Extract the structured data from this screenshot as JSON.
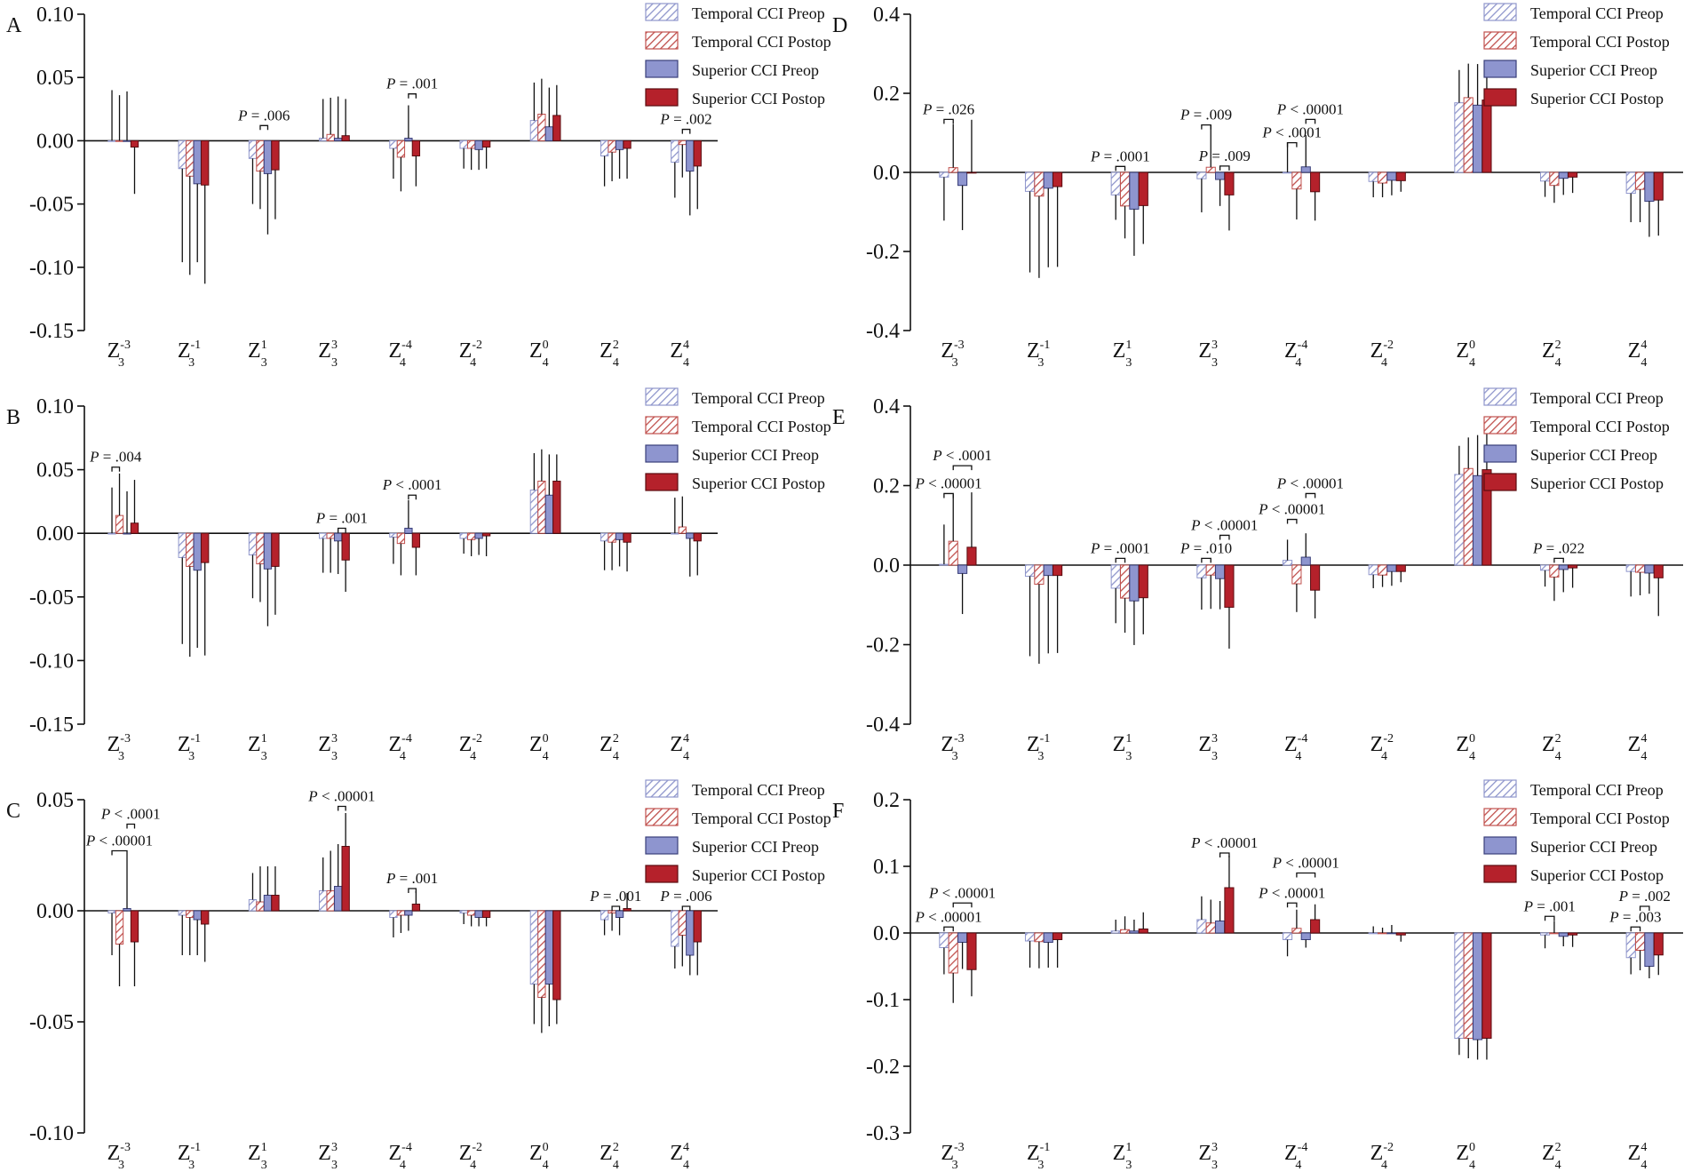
{
  "figure": {
    "legend": [
      {
        "label": "Temporal CCI Preop",
        "style": "hatch-blue"
      },
      {
        "label": "Temporal CCI Postop",
        "style": "hatch-red"
      },
      {
        "label": "Superior CCI Preop",
        "style": "solid-blue"
      },
      {
        "label": "Superior CCI Postop",
        "style": "solid-red"
      }
    ],
    "colors": {
      "preop_hatch": "#8f96cc",
      "postop_hatch": "#c0504d",
      "superior_preop_fill": "#8e95cf",
      "superior_postop_fill": "#b5212b",
      "axis": "#111111"
    },
    "x_categories": [
      {
        "base": "Z",
        "sub": "3",
        "sup": "-3"
      },
      {
        "base": "Z",
        "sub": "3",
        "sup": "-1"
      },
      {
        "base": "Z",
        "sub": "3",
        "sup": "1"
      },
      {
        "base": "Z",
        "sub": "3",
        "sup": "3"
      },
      {
        "base": "Z",
        "sub": "4",
        "sup": "-4"
      },
      {
        "base": "Z",
        "sub": "4",
        "sup": "-2"
      },
      {
        "base": "Z",
        "sub": "4",
        "sup": "0"
      },
      {
        "base": "Z",
        "sub": "4",
        "sup": "2"
      },
      {
        "base": "Z",
        "sub": "4",
        "sup": "4"
      }
    ]
  },
  "chart_data": [
    {
      "panel": "A",
      "type": "bar",
      "ylim": [
        -0.15,
        0.1
      ],
      "yticks": [
        "0.10",
        "0.05",
        "0.00",
        "-0.05",
        "-0.10",
        "-0.15"
      ],
      "ytick_values": [
        0.1,
        0.05,
        0,
        -0.05,
        -0.1,
        -0.15
      ],
      "series": [
        {
          "name": "Temporal CCI Preop",
          "values": [
            0.0,
            -0.022,
            -0.014,
            0.002,
            -0.006,
            -0.006,
            0.016,
            -0.012,
            -0.017
          ],
          "errors": [
            0.04,
            0.074,
            0.036,
            0.031,
            0.024,
            0.016,
            0.03,
            0.024,
            0.028
          ]
        },
        {
          "name": "Temporal CCI Postop",
          "values": [
            0.0,
            -0.028,
            -0.024,
            0.005,
            -0.013,
            -0.006,
            0.021,
            -0.009,
            -0.003
          ],
          "errors": [
            0.036,
            0.078,
            0.03,
            0.029,
            0.027,
            0.017,
            0.028,
            0.023,
            0.026
          ]
        },
        {
          "name": "Superior CCI Preop",
          "values": [
            0.0,
            -0.034,
            -0.026,
            0.002,
            0.002,
            -0.007,
            0.011,
            -0.007,
            -0.024
          ],
          "errors": [
            0.039,
            0.062,
            0.048,
            0.033,
            0.026,
            0.016,
            0.031,
            0.023,
            0.035
          ]
        },
        {
          "name": "Superior CCI Postop",
          "values": [
            -0.005,
            -0.035,
            -0.023,
            0.004,
            -0.012,
            -0.005,
            0.02,
            -0.006,
            -0.02
          ],
          "errors": [
            0.037,
            0.078,
            0.039,
            0.029,
            0.024,
            0.017,
            0.024,
            0.024,
            0.034
          ]
        }
      ],
      "annotations": [
        {
          "cat": 2,
          "a": 1,
          "b": 2,
          "text": "P = .006",
          "y": 0.012
        },
        {
          "cat": 4,
          "a": 2,
          "b": 3,
          "text": "P = .001",
          "y": 0.037
        },
        {
          "cat": 8,
          "a": 1,
          "b": 2,
          "text": "P = .002",
          "y": 0.009
        }
      ]
    },
    {
      "panel": "B",
      "type": "bar",
      "ylim": [
        -0.15,
        0.1
      ],
      "yticks": [
        "0.10",
        "0.05",
        "0.00",
        "-0.05",
        "-0.10",
        "-0.15"
      ],
      "ytick_values": [
        0.1,
        0.05,
        0,
        -0.05,
        -0.1,
        -0.15
      ],
      "series": [
        {
          "name": "Temporal CCI Preop",
          "values": [
            0.0,
            -0.019,
            -0.017,
            -0.004,
            -0.003,
            -0.004,
            0.034,
            -0.006,
            0.0
          ],
          "errors": [
            0.036,
            0.068,
            0.034,
            0.027,
            0.021,
            0.012,
            0.029,
            0.023,
            0.028
          ]
        },
        {
          "name": "Temporal CCI Postop",
          "values": [
            0.014,
            -0.026,
            -0.024,
            -0.004,
            -0.008,
            -0.005,
            0.041,
            -0.007,
            0.005
          ],
          "errors": [
            0.033,
            0.071,
            0.03,
            0.027,
            0.025,
            0.013,
            0.025,
            0.022,
            0.024
          ]
        },
        {
          "name": "Superior CCI Preop",
          "values": [
            0.0,
            -0.029,
            -0.028,
            -0.006,
            0.004,
            -0.004,
            0.03,
            -0.005,
            -0.004
          ],
          "errors": [
            0.033,
            0.061,
            0.045,
            0.026,
            0.022,
            0.013,
            0.032,
            0.021,
            0.03
          ]
        },
        {
          "name": "Superior CCI Postop",
          "values": [
            0.008,
            -0.023,
            -0.026,
            -0.021,
            -0.011,
            -0.002,
            0.041,
            -0.007,
            -0.006
          ],
          "errors": [
            0.034,
            0.073,
            0.038,
            0.025,
            0.022,
            0.016,
            0.021,
            0.023,
            0.027
          ]
        }
      ],
      "annotations": [
        {
          "cat": 0,
          "a": 0,
          "b": 1,
          "text": "P = .004",
          "y": 0.052
        },
        {
          "cat": 3,
          "a": 2,
          "b": 3,
          "text": "P = .001",
          "y": 0.004
        },
        {
          "cat": 4,
          "a": 2,
          "b": 3,
          "text": "P < .0001",
          "y": 0.03
        }
      ]
    },
    {
      "panel": "C",
      "type": "bar",
      "ylim": [
        -0.1,
        0.05
      ],
      "yticks": [
        "0.05",
        "0.00",
        "-0.05",
        "-0.10"
      ],
      "ytick_values": [
        0.05,
        0,
        -0.05,
        -0.1
      ],
      "series": [
        {
          "name": "Temporal CCI Preop",
          "values": [
            -0.001,
            -0.002,
            0.005,
            0.009,
            -0.003,
            -0.001,
            -0.033,
            -0.004,
            -0.016
          ],
          "errors": [
            0.019,
            0.018,
            0.012,
            0.015,
            0.009,
            0.005,
            0.018,
            0.007,
            0.01
          ]
        },
        {
          "name": "Temporal CCI Postop",
          "values": [
            -0.015,
            -0.003,
            0.004,
            0.009,
            -0.002,
            -0.002,
            -0.039,
            -0.001,
            -0.011
          ],
          "errors": [
            0.019,
            0.017,
            0.016,
            0.018,
            0.008,
            0.005,
            0.016,
            0.008,
            0.014
          ]
        },
        {
          "name": "Superior CCI Preop",
          "values": [
            0.001,
            -0.004,
            0.007,
            0.011,
            -0.002,
            -0.003,
            -0.033,
            -0.003,
            -0.02
          ],
          "errors": [
            0.024,
            0.016,
            0.013,
            0.019,
            0.007,
            0.004,
            0.019,
            0.008,
            0.009
          ]
        },
        {
          "name": "Superior CCI Postop",
          "values": [
            -0.014,
            -0.006,
            0.007,
            0.029,
            0.003,
            -0.003,
            -0.04,
            0.001,
            -0.014
          ],
          "errors": [
            0.02,
            0.017,
            0.013,
            0.015,
            0.006,
            0.004,
            0.011,
            0.007,
            0.015
          ]
        }
      ],
      "annotations": [
        {
          "cat": 0,
          "a": 0,
          "b": 2,
          "text": "P < .00001",
          "y": 0.027
        },
        {
          "cat": 0,
          "a": 2,
          "b": 3,
          "text": "P < .0001",
          "y": 0.039
        },
        {
          "cat": 3,
          "a": 2,
          "b": 3,
          "text": "P < .00001",
          "y": 0.047
        },
        {
          "cat": 4,
          "a": 2,
          "b": 3,
          "text": "P = .001",
          "y": 0.01
        },
        {
          "cat": 7,
          "a": 1,
          "b": 2,
          "text": "P = .001",
          "y": 0.002
        },
        {
          "cat": 8,
          "a": 1,
          "b": 2,
          "text": "P = .006",
          "y": 0.002
        }
      ]
    },
    {
      "panel": "D",
      "type": "bar",
      "ylim": [
        -0.4,
        0.4
      ],
      "yticks": [
        "0.4",
        "0.2",
        "0.0",
        "-0.2",
        "-0.4"
      ],
      "ytick_values": [
        0.4,
        0.2,
        0,
        -0.2,
        -0.4
      ],
      "series": [
        {
          "name": "Temporal CCI Preop",
          "values": [
            -0.012,
            -0.048,
            -0.057,
            -0.016,
            0.0,
            -0.023,
            0.176,
            -0.022,
            -0.053
          ],
          "errors": [
            0.11,
            0.205,
            0.063,
            0.085,
            0.076,
            0.04,
            0.083,
            0.04,
            0.073
          ]
        },
        {
          "name": "Temporal CCI Postop",
          "values": [
            0.012,
            -0.06,
            -0.085,
            0.013,
            -0.042,
            -0.027,
            0.189,
            -0.033,
            -0.043
          ],
          "errors": [
            0.11,
            0.207,
            0.082,
            0.106,
            0.077,
            0.036,
            0.086,
            0.044,
            0.083
          ]
        },
        {
          "name": "Superior CCI Preop",
          "values": [
            -0.033,
            -0.04,
            -0.093,
            -0.018,
            0.014,
            -0.02,
            0.17,
            -0.015,
            -0.073
          ],
          "errors": [
            0.113,
            0.2,
            0.118,
            0.067,
            0.08,
            0.038,
            0.104,
            0.042,
            0.09
          ]
        },
        {
          "name": "Superior CCI Postop",
          "values": [
            0.0,
            -0.036,
            -0.084,
            -0.057,
            -0.049,
            -0.021,
            0.183,
            -0.012,
            -0.07
          ],
          "errors": [
            0.133,
            0.203,
            0.097,
            0.09,
            0.073,
            0.028,
            0.092,
            0.04,
            0.09
          ]
        }
      ],
      "annotations": [
        {
          "cat": 0,
          "a": 0,
          "b": 1,
          "text": "P = .026",
          "y": 0.134
        },
        {
          "cat": 2,
          "a": 0,
          "b": 1,
          "text": "P = .0001",
          "y": 0.015
        },
        {
          "cat": 3,
          "a": 0,
          "b": 1,
          "text": "P = .009",
          "y": 0.12
        },
        {
          "cat": 3,
          "a": 2,
          "b": 3,
          "text": "P = .009",
          "y": 0.016
        },
        {
          "cat": 4,
          "a": 0,
          "b": 1,
          "text": "P < .0001",
          "y": 0.075
        },
        {
          "cat": 4,
          "a": 2,
          "b": 3,
          "text": "P < .00001",
          "y": 0.134
        }
      ]
    },
    {
      "panel": "E",
      "type": "bar",
      "ylim": [
        -0.4,
        0.4
      ],
      "yticks": [
        "0.4",
        "0.2",
        "0.0",
        "-0.2",
        "-0.4"
      ],
      "ytick_values": [
        0.4,
        0.2,
        0,
        -0.2,
        -0.4
      ],
      "series": [
        {
          "name": "Temporal CCI Preop",
          "values": [
            0.002,
            -0.028,
            -0.058,
            -0.032,
            0.012,
            -0.024,
            0.228,
            -0.013,
            -0.016
          ],
          "errors": [
            0.1,
            0.201,
            0.088,
            0.08,
            0.052,
            0.034,
            0.072,
            0.041,
            0.063
          ]
        },
        {
          "name": "Temporal CCI Postop",
          "values": [
            0.06,
            -0.048,
            -0.083,
            -0.025,
            -0.047,
            -0.025,
            0.243,
            -0.03,
            -0.018
          ],
          "errors": [
            0.118,
            0.2,
            0.087,
            0.085,
            0.071,
            0.03,
            0.078,
            0.06,
            0.058
          ]
        },
        {
          "name": "Superior CCI Preop",
          "values": [
            -0.021,
            -0.026,
            -0.09,
            -0.034,
            0.02,
            -0.016,
            0.225,
            -0.011,
            -0.02
          ],
          "errors": [
            0.102,
            0.196,
            0.111,
            0.077,
            0.06,
            0.036,
            0.102,
            0.057,
            0.052
          ]
        },
        {
          "name": "Superior CCI Postop",
          "values": [
            0.045,
            -0.026,
            -0.082,
            -0.106,
            -0.063,
            -0.016,
            0.24,
            -0.007,
            -0.032
          ],
          "errors": [
            0.138,
            0.195,
            0.092,
            0.104,
            0.071,
            0.027,
            0.09,
            0.05,
            0.096
          ]
        }
      ],
      "annotations": [
        {
          "cat": 0,
          "a": 0,
          "b": 1,
          "text": "P < .00001",
          "y": 0.18
        },
        {
          "cat": 0,
          "a": 1,
          "b": 3,
          "text": "P < .0001",
          "y": 0.25
        },
        {
          "cat": 2,
          "a": 0,
          "b": 1,
          "text": "P = .0001",
          "y": 0.017
        },
        {
          "cat": 3,
          "a": 0,
          "b": 1,
          "text": "P = .010",
          "y": 0.017
        },
        {
          "cat": 3,
          "a": 2,
          "b": 3,
          "text": "P < .00001",
          "y": 0.075
        },
        {
          "cat": 4,
          "a": 0,
          "b": 1,
          "text": "P < .00001",
          "y": 0.115
        },
        {
          "cat": 4,
          "a": 2,
          "b": 3,
          "text": "P < .00001",
          "y": 0.18
        },
        {
          "cat": 7,
          "a": 1,
          "b": 2,
          "text": "P = .022",
          "y": 0.017
        }
      ]
    },
    {
      "panel": "F",
      "type": "bar",
      "ylim": [
        -0.3,
        0.2
      ],
      "yticks": [
        "0.2",
        "0.1",
        "0.0",
        "-0.1",
        "-0.2",
        "-0.3"
      ],
      "ytick_values": [
        0.2,
        0.1,
        0,
        -0.1,
        -0.2,
        -0.3
      ],
      "series": [
        {
          "name": "Temporal CCI Preop",
          "values": [
            -0.022,
            -0.012,
            0.003,
            0.02,
            -0.01,
            0.0,
            -0.158,
            -0.003,
            -0.037
          ],
          "errors": [
            0.04,
            0.04,
            0.017,
            0.035,
            0.025,
            0.01,
            0.025,
            0.02,
            0.025
          ]
        },
        {
          "name": "Temporal CCI Postop",
          "values": [
            -0.06,
            -0.013,
            0.005,
            0.015,
            0.007,
            0.0,
            -0.158,
            0.0,
            -0.026
          ],
          "errors": [
            0.045,
            0.04,
            0.02,
            0.035,
            0.028,
            0.008,
            0.03,
            0.018,
            0.03
          ]
        },
        {
          "name": "Superior CCI Preop",
          "values": [
            -0.014,
            -0.014,
            0.003,
            0.018,
            -0.01,
            0.0,
            -0.16,
            -0.005,
            -0.05
          ],
          "errors": [
            0.04,
            0.038,
            0.017,
            0.03,
            0.012,
            0.012,
            0.03,
            0.015,
            0.018
          ]
        },
        {
          "name": "Superior CCI Postop",
          "values": [
            -0.055,
            -0.01,
            0.006,
            0.068,
            0.02,
            -0.003,
            -0.158,
            -0.003,
            -0.033
          ],
          "errors": [
            0.04,
            0.042,
            0.025,
            0.048,
            0.023,
            0.01,
            0.032,
            0.018,
            0.03
          ]
        }
      ],
      "annotations": [
        {
          "cat": 0,
          "a": 0,
          "b": 1,
          "text": "P < .00001",
          "y": 0.009
        },
        {
          "cat": 0,
          "a": 1,
          "b": 3,
          "text": "P < .00001",
          "y": 0.045
        },
        {
          "cat": 3,
          "a": 2,
          "b": 3,
          "text": "P < .00001",
          "y": 0.12
        },
        {
          "cat": 4,
          "a": 0,
          "b": 1,
          "text": "P < .00001",
          "y": 0.045
        },
        {
          "cat": 4,
          "a": 1,
          "b": 3,
          "text": "P < .00001",
          "y": 0.09
        },
        {
          "cat": 7,
          "a": 0,
          "b": 1,
          "text": "P = .001",
          "y": 0.025
        },
        {
          "cat": 8,
          "a": 0,
          "b": 1,
          "text": "P = .003",
          "y": 0.009
        },
        {
          "cat": 8,
          "a": 1,
          "b": 2,
          "text": "P = .002",
          "y": 0.04
        }
      ]
    }
  ]
}
